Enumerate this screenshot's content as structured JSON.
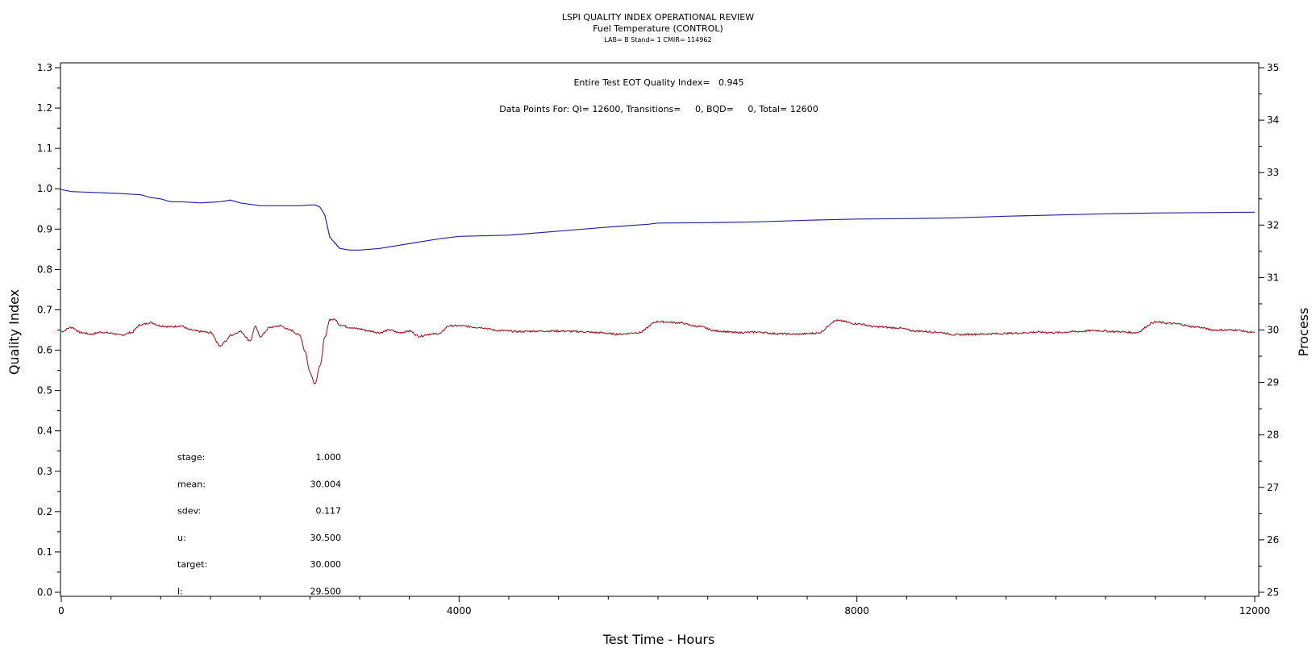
{
  "chart_data": {
    "type": "line",
    "title": "LSPI QUALITY INDEX OPERATIONAL REVIEW",
    "subtitle": "Fuel Temperature (CONTROL)",
    "subtitle2": "LAB= B Stand= 1 CMIR= 114962",
    "xlabel": "Test Time - Hours",
    "ylabel_left": "Quality Index",
    "ylabel_right": "Process",
    "xlim": [
      0,
      12000
    ],
    "ylim_left": [
      0,
      1.3
    ],
    "ylim_right": [
      25,
      35
    ],
    "x_ticks": [
      "0",
      "4000",
      "8000",
      "12000"
    ],
    "y_left_ticks": [
      "0.0",
      "0.1",
      "0.2",
      "0.3",
      "0.4",
      "0.5",
      "0.6",
      "0.7",
      "0.8",
      "0.9",
      "1.0",
      "1.1",
      "1.2",
      "1.3"
    ],
    "y_right_ticks": [
      "25",
      "26",
      "27",
      "28",
      "29",
      "30",
      "31",
      "32",
      "33",
      "34",
      "35"
    ],
    "annotation_qi": "Entire Test EOT Quality Index=   0.945",
    "annotation_points": "Data Points For: QI= 12600, Transitions=     0, BQD=     0, Total= 12600",
    "stats": [
      {
        "label": "stage:",
        "value": "1.000"
      },
      {
        "label": "mean:",
        "value": "30.004"
      },
      {
        "label": "sdev:",
        "value": "0.117"
      },
      {
        "label": "u:",
        "value": "30.500"
      },
      {
        "label": "target:",
        "value": "30.000"
      },
      {
        "label": "l:",
        "value": "29.500"
      }
    ],
    "series": [
      {
        "axis": "left",
        "color": "#2424a0",
        "x": [
          0,
          100,
          200,
          600,
          800,
          900,
          1000,
          1100,
          1200,
          1400,
          1600,
          1650,
          1700,
          1800,
          2000,
          2200,
          2400,
          2500,
          2550,
          2600,
          2650,
          2700,
          2800,
          2900,
          3000,
          3200,
          3400,
          3600,
          3800,
          4000,
          4500,
          5000,
          5500,
          5900,
          6000,
          6500,
          7000,
          7500,
          8000,
          8500,
          9000,
          9500,
          10000,
          10500,
          11000,
          11500,
          12000
        ],
        "values": [
          0.998,
          0.993,
          0.992,
          0.988,
          0.985,
          0.978,
          0.975,
          0.968,
          0.968,
          0.965,
          0.968,
          0.97,
          0.972,
          0.965,
          0.958,
          0.958,
          0.958,
          0.96,
          0.96,
          0.955,
          0.935,
          0.88,
          0.852,
          0.848,
          0.848,
          0.852,
          0.86,
          0.868,
          0.876,
          0.882,
          0.885,
          0.895,
          0.905,
          0.912,
          0.915,
          0.916,
          0.918,
          0.922,
          0.925,
          0.926,
          0.928,
          0.932,
          0.935,
          0.938,
          0.94,
          0.941,
          0.942
        ]
      },
      {
        "axis": "right",
        "color": "#a01c24",
        "x": [
          0,
          100,
          200,
          300,
          400,
          500,
          600,
          700,
          800,
          900,
          1000,
          1100,
          1200,
          1300,
          1400,
          1500,
          1600,
          1650,
          1700,
          1800,
          1900,
          1950,
          2000,
          2100,
          2200,
          2300,
          2400,
          2450,
          2500,
          2550,
          2600,
          2650,
          2700,
          2750,
          2800,
          2900,
          3000,
          3100,
          3200,
          3300,
          3400,
          3500,
          3600,
          3700,
          3800,
          3900,
          4000,
          4200,
          4400,
          4600,
          4800,
          5000,
          5200,
          5400,
          5600,
          5800,
          6000,
          6200,
          6400,
          6600,
          6800,
          7000,
          7200,
          7400,
          7600,
          7800,
          8000,
          8200,
          8400,
          8600,
          8800,
          9000,
          9200,
          9400,
          9600,
          9800,
          10000,
          10200,
          10400,
          10600,
          10800,
          11000,
          11200,
          11400,
          11600,
          11800,
          12000
        ],
        "values": [
          29.97,
          30.05,
          29.95,
          29.92,
          29.96,
          29.94,
          29.9,
          29.95,
          30.1,
          30.14,
          30.08,
          30.06,
          30.08,
          30.0,
          29.97,
          29.95,
          29.7,
          29.78,
          29.9,
          29.97,
          29.8,
          30.06,
          29.88,
          30.05,
          30.08,
          30.0,
          29.9,
          29.6,
          29.2,
          28.98,
          29.3,
          29.85,
          30.2,
          30.2,
          30.1,
          30.05,
          30.02,
          29.98,
          29.95,
          30.0,
          29.95,
          29.98,
          29.88,
          29.92,
          29.93,
          30.08,
          30.08,
          30.05,
          29.99,
          29.97,
          29.98,
          29.98,
          29.97,
          29.95,
          29.92,
          29.95,
          30.16,
          30.14,
          30.07,
          29.98,
          29.95,
          29.96,
          29.93,
          29.92,
          29.94,
          30.18,
          30.12,
          30.06,
          30.04,
          29.98,
          29.96,
          29.91,
          29.92,
          29.93,
          29.94,
          29.96,
          29.95,
          29.97,
          29.99,
          29.97,
          29.95,
          30.15,
          30.12,
          30.06,
          30.0,
          30.0,
          29.95
        ]
      }
    ]
  }
}
